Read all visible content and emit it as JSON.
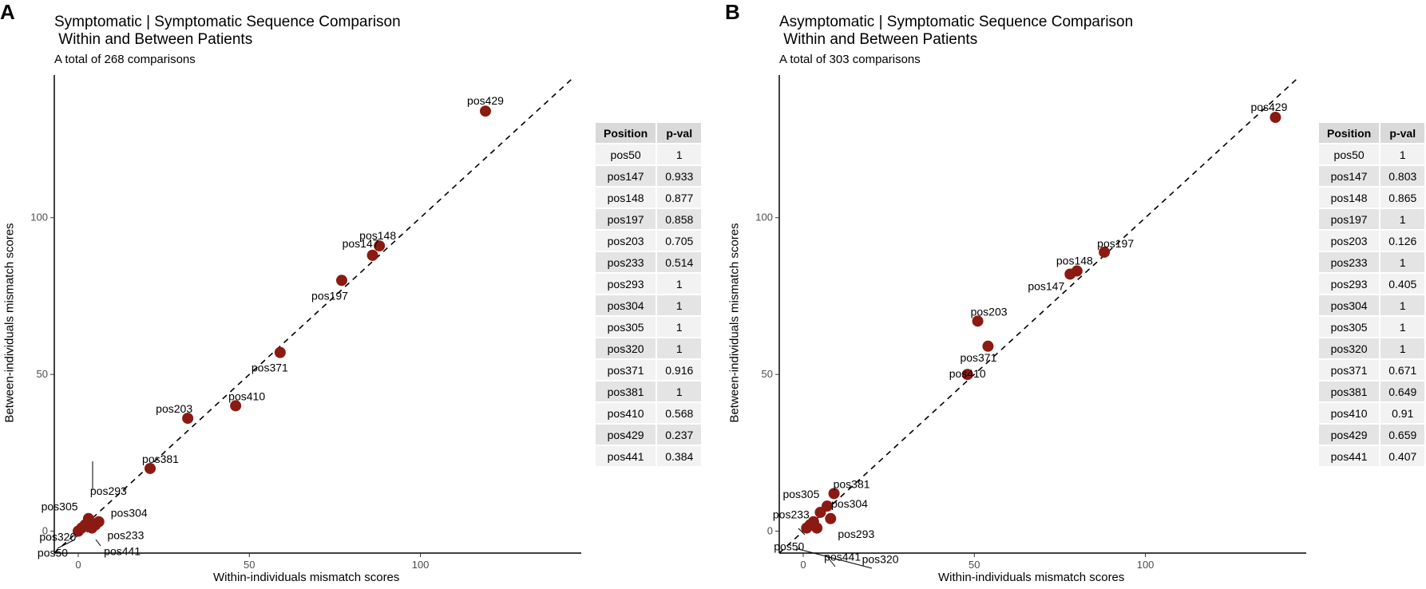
{
  "panels": {
    "a": {
      "letter": "A",
      "title": "Symptomatic | Symptomatic Sequence Comparison\n Within and Between Patients",
      "subtitle": "A total of 268 comparisons"
    },
    "b": {
      "letter": "B",
      "title": "Asymptomatic | Symptomatic Sequence Comparison\n Within and Between Patients",
      "subtitle": "A total of 303 comparisons"
    }
  },
  "tables": {
    "header_position": "Position",
    "header_pval": "p-val",
    "a": [
      [
        "pos50",
        "1"
      ],
      [
        "pos147",
        "0.933"
      ],
      [
        "pos148",
        "0.877"
      ],
      [
        "pos197",
        "0.858"
      ],
      [
        "pos203",
        "0.705"
      ],
      [
        "pos233",
        "0.514"
      ],
      [
        "pos293",
        "1"
      ],
      [
        "pos304",
        "1"
      ],
      [
        "pos305",
        "1"
      ],
      [
        "pos320",
        "1"
      ],
      [
        "pos371",
        "0.916"
      ],
      [
        "pos381",
        "1"
      ],
      [
        "pos410",
        "0.568"
      ],
      [
        "pos429",
        "0.237"
      ],
      [
        "pos441",
        "0.384"
      ]
    ],
    "b": [
      [
        "pos50",
        "1"
      ],
      [
        "pos147",
        "0.803"
      ],
      [
        "pos148",
        "0.865"
      ],
      [
        "pos197",
        "1"
      ],
      [
        "pos203",
        "0.126"
      ],
      [
        "pos233",
        "1"
      ],
      [
        "pos293",
        "0.405"
      ],
      [
        "pos304",
        "1"
      ],
      [
        "pos305",
        "1"
      ],
      [
        "pos320",
        "1"
      ],
      [
        "pos371",
        "0.671"
      ],
      [
        "pos381",
        "0.649"
      ],
      [
        "pos410",
        "0.91"
      ],
      [
        "pos429",
        "0.659"
      ],
      [
        "pos441",
        "0.407"
      ]
    ]
  },
  "chart_data": [
    {
      "type": "scatter",
      "title": "Symptomatic | Symptomatic Sequence Comparison Within and Between Patients",
      "subtitle": "A total of 268 comparisons",
      "xlabel": "Within-individuals mismatch scores",
      "ylabel": "Between-individuals mismatch scores",
      "xlim": [
        -7,
        147
      ],
      "ylim": [
        -7,
        145
      ],
      "xticks": [
        0,
        50,
        100
      ],
      "yticks": [
        0,
        50,
        100
      ],
      "reference_line": "y = x (dashed)",
      "point_color": "#8b1a12",
      "points": [
        {
          "label": "pos429",
          "x": 119,
          "y": 134
        },
        {
          "label": "pos148",
          "x": 88,
          "y": 91
        },
        {
          "label": "pos147",
          "x": 86,
          "y": 88
        },
        {
          "label": "pos197",
          "x": 77,
          "y": 80
        },
        {
          "label": "pos371",
          "x": 59,
          "y": 57
        },
        {
          "label": "pos410",
          "x": 46,
          "y": 40
        },
        {
          "label": "pos203",
          "x": 32,
          "y": 36
        },
        {
          "label": "pos381",
          "x": 21,
          "y": 20
        },
        {
          "label": "pos293",
          "x": 3,
          "y": 4
        },
        {
          "label": "pos304",
          "x": 6,
          "y": 3
        },
        {
          "label": "pos305",
          "x": 2,
          "y": 2
        },
        {
          "label": "pos233",
          "x": 5,
          "y": 2
        },
        {
          "label": "pos320",
          "x": 1,
          "y": 1
        },
        {
          "label": "pos441",
          "x": 4,
          "y": 1
        },
        {
          "label": "pos50",
          "x": 0,
          "y": 0
        }
      ]
    },
    {
      "type": "scatter",
      "title": "Asymptomatic | Symptomatic Sequence Comparison Within and Between Patients",
      "subtitle": "A total of 303 comparisons",
      "xlabel": "Within-individuals mismatch scores",
      "ylabel": "Between-individuals mismatch scores",
      "xlim": [
        -7,
        147
      ],
      "ylim": [
        -7,
        145
      ],
      "xticks": [
        0,
        50,
        100
      ],
      "yticks": [
        0,
        50,
        100
      ],
      "reference_line": "y = x (dashed)",
      "point_color": "#8b1a12",
      "points": [
        {
          "label": "pos429",
          "x": 138,
          "y": 132
        },
        {
          "label": "pos197",
          "x": 88,
          "y": 89
        },
        {
          "label": "pos148",
          "x": 80,
          "y": 83
        },
        {
          "label": "pos147",
          "x": 78,
          "y": 82
        },
        {
          "label": "pos203",
          "x": 51,
          "y": 67
        },
        {
          "label": "pos371",
          "x": 54,
          "y": 59
        },
        {
          "label": "pos410",
          "x": 48,
          "y": 50
        },
        {
          "label": "pos381",
          "x": 9,
          "y": 12
        },
        {
          "label": "pos304",
          "x": 7,
          "y": 8
        },
        {
          "label": "pos305",
          "x": 5,
          "y": 6
        },
        {
          "label": "pos293",
          "x": 8,
          "y": 4
        },
        {
          "label": "pos233",
          "x": 3,
          "y": 3
        },
        {
          "label": "pos441",
          "x": 4,
          "y": 1
        },
        {
          "label": "pos320",
          "x": 2,
          "y": 2
        },
        {
          "label": "pos50",
          "x": 1,
          "y": 1
        }
      ]
    }
  ]
}
